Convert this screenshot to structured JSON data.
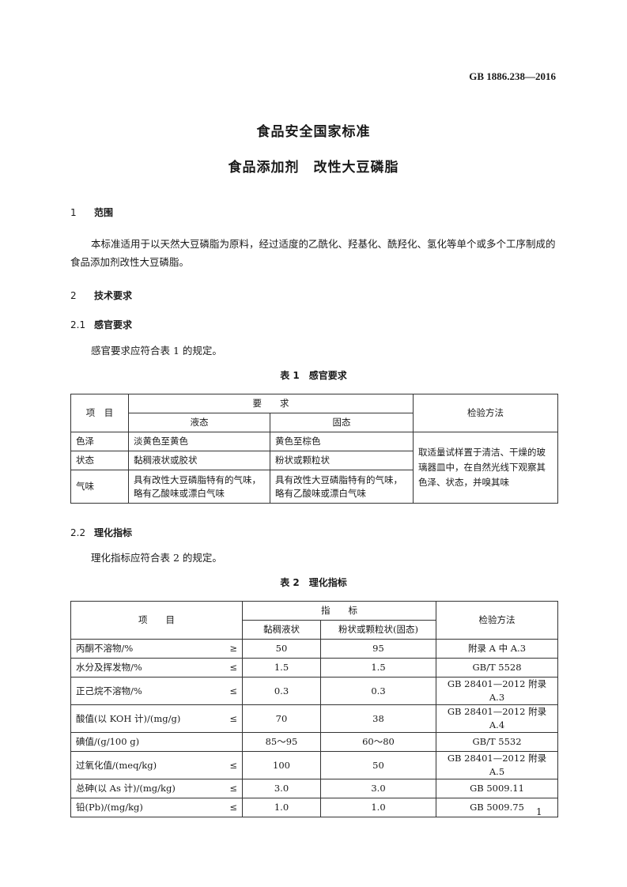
{
  "standard_number": "GB 1886.238—2016",
  "title_main": "食品安全国家标准",
  "title_sub": "食品添加剂　改性大豆磷脂",
  "section1": {
    "num": "1",
    "title": "范围",
    "text": "本标准适用于以天然大豆磷脂为原料，经过适度的乙酰化、羟基化、酰羟化、氢化等单个或多个工序制成的食品添加剂改性大豆磷脂。"
  },
  "section2": {
    "num": "2",
    "title": "技术要求"
  },
  "section21": {
    "num": "2.1",
    "title": "感官要求",
    "text": "感官要求应符合表 1 的规定。"
  },
  "table1": {
    "caption": "表 1　感官要求",
    "h_item": "项　目",
    "h_req": "要　　求",
    "h_liquid": "液态",
    "h_solid": "固态",
    "h_method": "检验方法",
    "rows": [
      {
        "item": "色泽",
        "liquid": "淡黄色至黄色",
        "solid": "黄色至棕色"
      },
      {
        "item": "状态",
        "liquid": "黏稠液状或胶状",
        "solid": "粉状或颗粒状"
      },
      {
        "item": "气味",
        "liquid": "具有改性大豆磷脂特有的气味，略有乙酸味或漂白气味",
        "solid": "具有改性大豆磷脂特有的气味，略有乙酸味或漂白气味"
      }
    ],
    "method": "取适量试样置于清洁、干燥的玻璃器皿中，在自然光线下观察其色泽、状态，并嗅其味"
  },
  "section22": {
    "num": "2.2",
    "title": "理化指标",
    "text": "理化指标应符合表 2 的规定。"
  },
  "table2": {
    "caption": "表 2　理化指标",
    "h_item": "项　　目",
    "h_index": "指　　标",
    "h_liquid": "黏稠液状",
    "h_solid": "粉状或颗粒状(固态)",
    "h_method": "检验方法",
    "rows": [
      {
        "item": "丙酮不溶物/%",
        "sign": "≥",
        "liquid": "50",
        "solid": "95",
        "method": "附录 A 中 A.3"
      },
      {
        "item": "水分及挥发物/%",
        "sign": "≤",
        "liquid": "1.5",
        "solid": "1.5",
        "method": "GB/T 5528"
      },
      {
        "item": "正己烷不溶物/%",
        "sign": "≤",
        "liquid": "0.3",
        "solid": "0.3",
        "method": "GB 28401—2012 附录 A.3"
      },
      {
        "item": "酸值(以 KOH 计)/(mg/g)",
        "sign": "≤",
        "liquid": "70",
        "solid": "38",
        "method": "GB 28401—2012 附录 A.4"
      },
      {
        "item": "碘值/(g/100 g)",
        "sign": "",
        "liquid": "85～95",
        "solid": "60～80",
        "method": "GB/T 5532"
      },
      {
        "item": "过氧化值/(meq/kg)",
        "sign": "≤",
        "liquid": "100",
        "solid": "50",
        "method": "GB 28401—2012 附录 A.5"
      },
      {
        "item": "总砷(以 As 计)/(mg/kg)",
        "sign": "≤",
        "liquid": "3.0",
        "solid": "3.0",
        "method": "GB 5009.11"
      },
      {
        "item": "铅(Pb)/(mg/kg)",
        "sign": "≤",
        "liquid": "1.0",
        "solid": "1.0",
        "method": "GB 5009.75"
      }
    ]
  },
  "page_number": "1"
}
